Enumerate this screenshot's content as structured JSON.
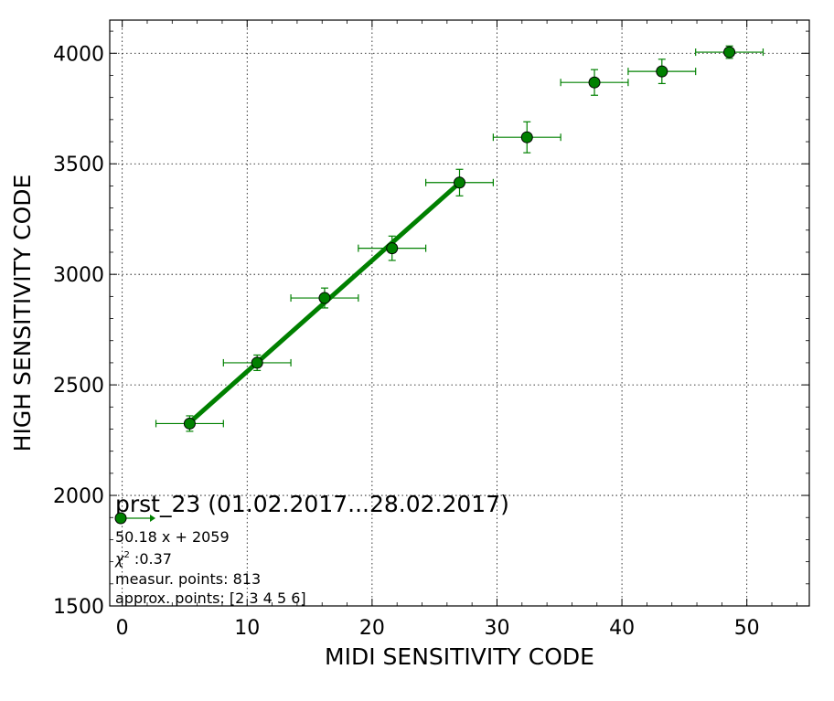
{
  "chart_data": {
    "type": "scatter",
    "xlabel": "MIDI SENSITIVITY CODE",
    "ylabel": "HIGH SENSITIVITY CODE",
    "xlim": [
      -1,
      55
    ],
    "ylim": [
      1500,
      4150
    ],
    "x_ticks": [
      0,
      10,
      20,
      30,
      40,
      50
    ],
    "y_ticks": [
      1500,
      2000,
      2500,
      3000,
      3500,
      4000
    ],
    "grid": true,
    "series": [
      {
        "color": "#008000",
        "marker": "circle",
        "points": [
          {
            "x": 5.4,
            "y": 2325,
            "xerr": 2.7,
            "yerr": 35
          },
          {
            "x": 10.8,
            "y": 2600,
            "xerr": 2.7,
            "yerr": 35
          },
          {
            "x": 16.2,
            "y": 2893,
            "xerr": 2.7,
            "yerr": 45
          },
          {
            "x": 21.6,
            "y": 3118,
            "xerr": 2.7,
            "yerr": 55
          },
          {
            "x": 27.0,
            "y": 3415,
            "xerr": 2.7,
            "yerr": 60
          },
          {
            "x": 32.4,
            "y": 3620,
            "xerr": 2.7,
            "yerr": 70
          },
          {
            "x": 37.8,
            "y": 3868,
            "xerr": 2.7,
            "yerr": 58
          },
          {
            "x": 43.2,
            "y": 3918,
            "xerr": 2.7,
            "yerr": 55
          },
          {
            "x": 48.6,
            "y": 4005,
            "xerr": 2.7,
            "yerr": 28
          }
        ]
      }
    ],
    "fit": {
      "slope": 50.18,
      "intercept": 2059,
      "x_range": [
        5.4,
        27.0
      ],
      "color": "#008000"
    },
    "legend": {
      "title": "prst_23 (01.02.2017...28.02.2017)",
      "equation": "50.18 x + 2059",
      "chi2_label": "χ",
      "chi2_sup": "2",
      "chi2_value": " :0.37",
      "measur_points": "measur. points: 813",
      "approx_points": "approx. points: [2 3 4 5 6]",
      "placement": "bottom-left"
    }
  }
}
